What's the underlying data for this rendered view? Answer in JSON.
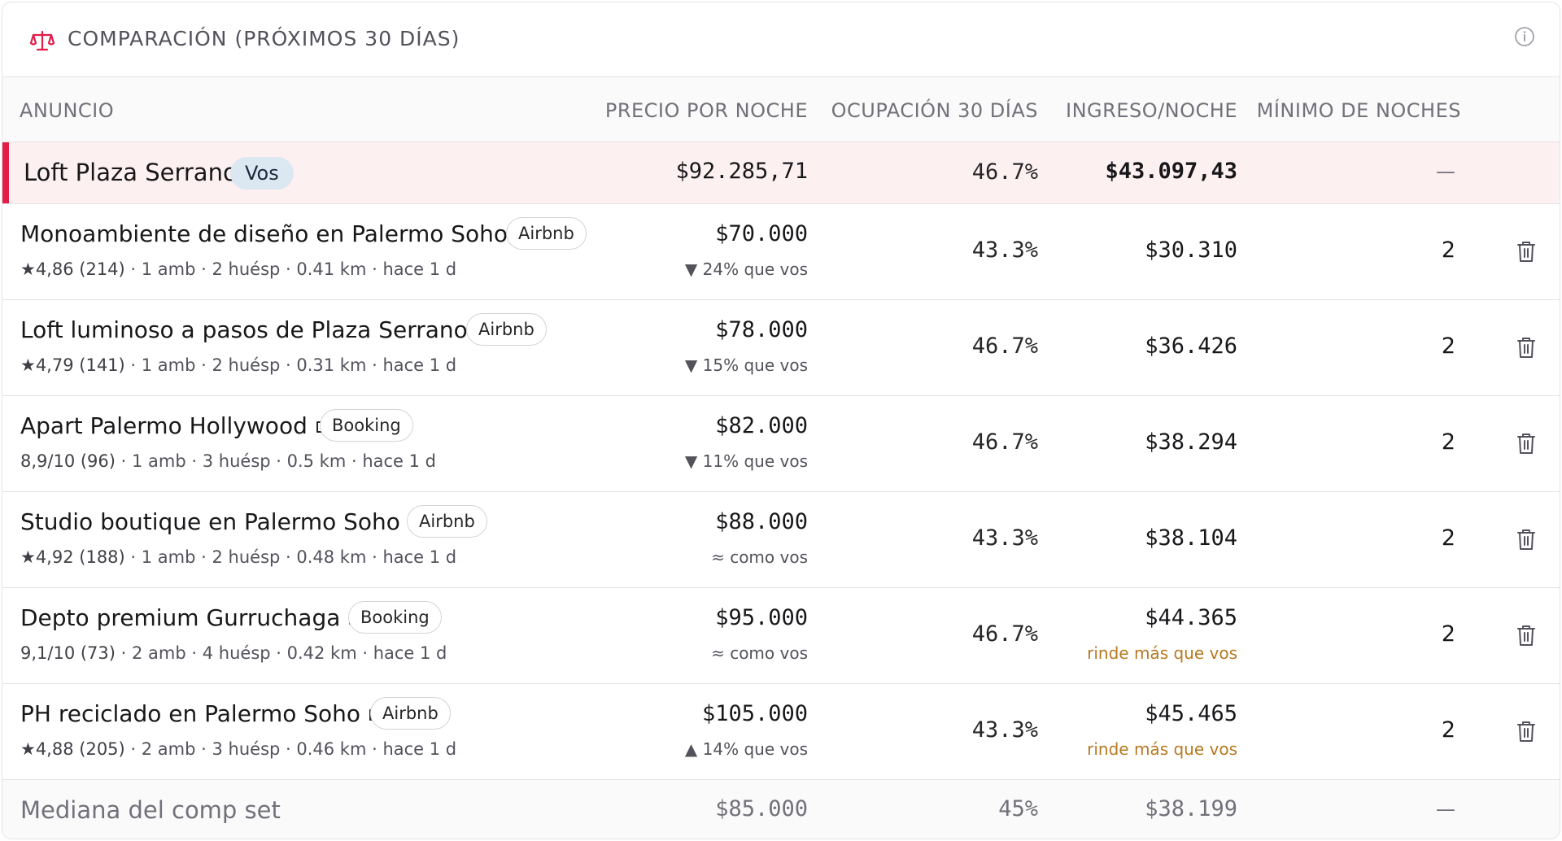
{
  "header": {
    "title": "COMPARACIÓN (PRÓXIMOS 30 DÍAS)",
    "icon": "scale-icon",
    "info_icon": "info-icon"
  },
  "columns": {
    "listing": "ANUNCIO",
    "price": "PRECIO POR NOCHE",
    "occupancy": "OCUPACIÓN 30 DÍAS",
    "revenue": "INGRESO/NOCHE",
    "min_nights": "MÍNIMO DE NOCHES"
  },
  "you": {
    "name": "Loft Plaza Serrano",
    "badge": "Vos",
    "price": "$92.285,71",
    "occupancy": "46.7%",
    "revenue": "$43.097,43",
    "min_nights": "—",
    "accent": "#e11d48"
  },
  "comps": [
    {
      "name": "Monoambiente de diseño en Palermo Soho",
      "platform": "Airbnb",
      "rating": "★4,86 (214)",
      "details": "· 1 amb · 2 huésp · 0.41 km · hace 1 d",
      "price": "$70.000",
      "delta": "▼ 24% que vos",
      "occupancy": "43.3%",
      "revenue": "$30.310",
      "revenue_note": "",
      "min_nights": "2"
    },
    {
      "name": "Loft luminoso a pasos de Plaza Serrano",
      "platform": "Airbnb",
      "rating": "★4,79 (141)",
      "details": "· 1 amb · 2 huésp · 0.31 km · hace 1 d",
      "price": "$78.000",
      "delta": "▼ 15% que vos",
      "occupancy": "46.7%",
      "revenue": "$36.426",
      "revenue_note": "",
      "min_nights": "2"
    },
    {
      "name": "Apart Palermo Hollywood",
      "platform": "Booking",
      "rating": "8,9/10 (96)",
      "details": "· 1 amb · 3 huésp · 0.5 km · hace 1 d",
      "price": "$82.000",
      "delta": "▼ 11% que vos",
      "occupancy": "46.7%",
      "revenue": "$38.294",
      "revenue_note": "",
      "min_nights": "2"
    },
    {
      "name": "Studio boutique en Palermo Soho",
      "platform": "Airbnb",
      "rating": "★4,92 (188)",
      "details": "· 1 amb · 2 huésp · 0.48 km · hace 1 d",
      "price": "$88.000",
      "delta": "≈ como vos",
      "occupancy": "43.3%",
      "revenue": "$38.104",
      "revenue_note": "",
      "min_nights": "2"
    },
    {
      "name": "Depto premium Gurruchaga",
      "platform": "Booking",
      "rating": "9,1/10 (73)",
      "details": "· 2 amb · 4 huésp · 0.42 km · hace 1 d",
      "price": "$95.000",
      "delta": "≈ como vos",
      "occupancy": "46.7%",
      "revenue": "$44.365",
      "revenue_note": "rinde más que vos",
      "min_nights": "2"
    },
    {
      "name": "PH reciclado en Palermo Soho",
      "platform": "Airbnb",
      "rating": "★4,88 (205)",
      "details": "· 2 amb · 3 huésp · 0.46 km · hace 1 d",
      "price": "$105.000",
      "delta": "▲ 14% que vos",
      "occupancy": "43.3%",
      "revenue": "$45.465",
      "revenue_note": "rinde más que vos",
      "min_nights": "2"
    }
  ],
  "median": {
    "label": "Mediana del comp set",
    "price": "$85.000",
    "occupancy": "45%",
    "revenue": "$38.199",
    "min_nights": "—"
  },
  "colors": {
    "highlight_row": "#fdf0f1",
    "note": "#b7791f"
  }
}
